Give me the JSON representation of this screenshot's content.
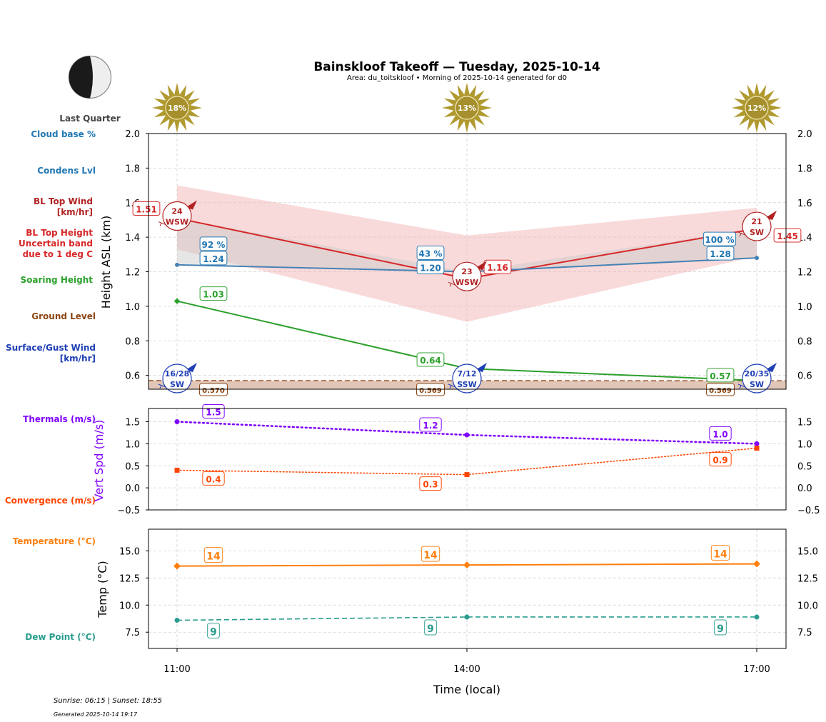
{
  "header": {
    "title": "Bainskloof Takeoff — Tuesday, 2025-10-14",
    "subtitle": "Area: du_toitskloof • Morning of 2025-10-14 generated for d0",
    "moon_phase": "Last Quarter",
    "moon_icon": "moon-last-quarter-icon"
  },
  "footer": {
    "sun_times": "Sunrise: 06:15 | Sunset: 18:55",
    "generated": "Generated 2025-10-14 19:17"
  },
  "colors": {
    "cloud": "#1f77b4",
    "bl_wind": "#b22222",
    "bl_top": "#d62728",
    "soaring": "#2ca02c",
    "ground": "#8b4513",
    "surface_wind": "#1f3fb5",
    "thermals": "#7f00ff",
    "convergence": "#ff4500",
    "temperature": "#ff7f0e",
    "dewpoint": "#2a9d8f",
    "sun": "#b09a30"
  },
  "side_labels": {
    "cloud_base": "Cloud base %",
    "condens": "Condens Lvl",
    "bl_wind_1": "BL Top Wind",
    "bl_wind_2": "[km/hr]",
    "bl_top_1": "BL Top Height",
    "bl_top_2": "Uncertain band",
    "bl_top_3": "due to 1 deg C",
    "soaring": "Soaring Height",
    "ground": "Ground Level",
    "surface_1": "Surface/Gust Wind",
    "surface_2": "[km/hr]",
    "thermals": "Thermals (m/s)",
    "convergence": "Convergence (m/s)",
    "temperature": "Temperature (°C)",
    "dewpoint": "Dew Point (°C)"
  },
  "chart_data": [
    {
      "type": "line",
      "title": "Bainskloof Takeoff — Tuesday, 2025-10-14",
      "panel": "height",
      "x": [
        "11:00",
        "14:00",
        "17:00"
      ],
      "ylabel": "Height ASL (km)",
      "ylim": [
        0.52,
        2.0
      ],
      "yticks": [
        0.6,
        0.8,
        1.0,
        1.2,
        1.4,
        1.6,
        1.8,
        2.0
      ],
      "ytick_labels": [
        "0.6",
        "0.8",
        "1.0",
        "1.2",
        "1.4",
        "1.6",
        "1.8",
        "2.0"
      ],
      "grid": true,
      "sun_percent": [
        "18%",
        "13%",
        "12%"
      ],
      "series": [
        {
          "name": "BL Top Height",
          "values": [
            1.51,
            1.16,
            1.45
          ],
          "labels": [
            "1.51",
            "1.16",
            "1.45"
          ]
        },
        {
          "name": "BL Top Uncertain band",
          "lower": [
            1.33,
            0.91,
            1.29
          ],
          "upper": [
            1.7,
            1.41,
            1.57
          ]
        },
        {
          "name": "Condens Lvl",
          "values": [
            1.24,
            1.2,
            1.28
          ],
          "labels": [
            "1.24",
            "1.20",
            "1.28"
          ]
        },
        {
          "name": "Cloud base %",
          "values": [
            92,
            43,
            100
          ],
          "labels": [
            "92 %",
            "43 %",
            "100 %"
          ]
        },
        {
          "name": "Soaring Height",
          "values": [
            1.03,
            0.64,
            0.57
          ],
          "labels": [
            "1.03",
            "0.64",
            "0.57"
          ]
        },
        {
          "name": "Ground Level",
          "values": [
            0.57,
            0.569,
            0.569
          ],
          "labels": [
            "0.570",
            "0.569",
            "0.569"
          ]
        },
        {
          "name": "BL Top Wind",
          "speed": [
            "24",
            "23",
            "21"
          ],
          "direction": [
            "WSW",
            "WSW",
            "SW"
          ]
        },
        {
          "name": "Surface/Gust Wind",
          "speed": [
            "16/28",
            "7/12",
            "20/35"
          ],
          "direction": [
            "SW",
            "SSW",
            "SW"
          ]
        }
      ]
    },
    {
      "type": "line",
      "panel": "vertical-speed",
      "x": [
        "11:00",
        "14:00",
        "17:00"
      ],
      "ylabel": "Vert Spd (m/s)",
      "ylim": [
        -0.5,
        1.8
      ],
      "yticks": [
        -0.5,
        0.0,
        0.5,
        1.0,
        1.5
      ],
      "ytick_labels": [
        "−0.5",
        "0.0",
        "0.5",
        "1.0",
        "1.5"
      ],
      "grid": true,
      "series": [
        {
          "name": "Thermals (m/s)",
          "values": [
            1.5,
            1.2,
            1.0
          ],
          "labels": [
            "1.5",
            "1.2",
            "1.0"
          ]
        },
        {
          "name": "Convergence (m/s)",
          "values": [
            0.4,
            0.3,
            0.9
          ],
          "labels": [
            "0.4",
            "0.3",
            "0.9"
          ]
        }
      ]
    },
    {
      "type": "line",
      "panel": "temperature",
      "x": [
        "11:00",
        "14:00",
        "17:00"
      ],
      "xlabel": "Time (local)",
      "ylabel": "Temp (°C)",
      "ylim": [
        6.0,
        17.0
      ],
      "yticks": [
        7.5,
        10.0,
        12.5,
        15.0
      ],
      "ytick_labels": [
        "7.5",
        "10.0",
        "12.5",
        "15.0"
      ],
      "grid": true,
      "series": [
        {
          "name": "Temperature (°C)",
          "values": [
            13.6,
            13.7,
            13.8
          ],
          "labels": [
            "14",
            "14",
            "14"
          ]
        },
        {
          "name": "Dew Point (°C)",
          "values": [
            8.6,
            8.9,
            8.9
          ],
          "labels": [
            "9",
            "9",
            "9"
          ]
        }
      ]
    }
  ]
}
